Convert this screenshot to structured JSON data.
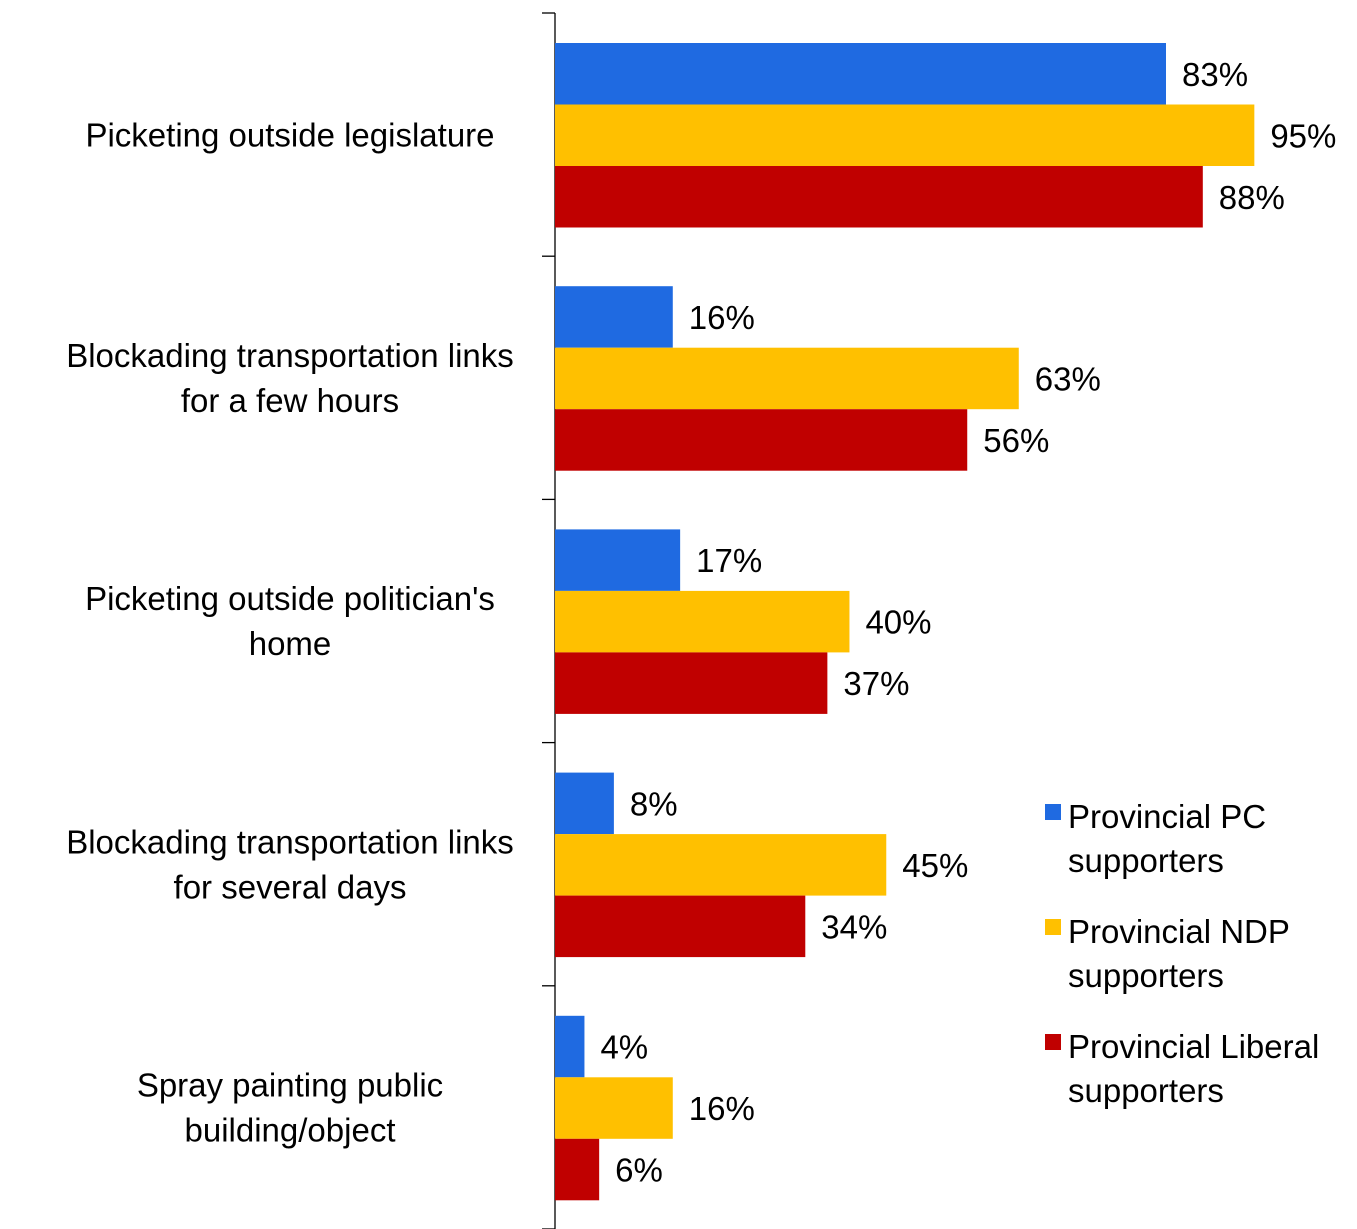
{
  "chart_data": {
    "type": "bar",
    "orientation": "horizontal",
    "categories": [
      [
        "Picketing outside legislature"
      ],
      [
        "Blockading transportation links",
        "for a few hours"
      ],
      [
        "Picketing outside politician's",
        "home"
      ],
      [
        "Blockading transportation links",
        "for several days"
      ],
      [
        "Spray painting public",
        "building/object"
      ]
    ],
    "series": [
      {
        "name": [
          "Provincial PC",
          "supporters"
        ],
        "color": "#1f6ae1",
        "values": [
          83,
          16,
          17,
          8,
          4
        ],
        "labels": [
          "83%",
          "16%",
          "17%",
          "8%",
          "4%"
        ]
      },
      {
        "name": [
          "Provincial NDP",
          "supporters"
        ],
        "color": "#ffc000",
        "values": [
          95,
          63,
          40,
          45,
          16
        ],
        "labels": [
          "95%",
          "63%",
          "40%",
          "45%",
          "16%"
        ]
      },
      {
        "name": [
          "Provincial Liberal",
          "supporters"
        ],
        "color": "#c00000",
        "values": [
          88,
          56,
          37,
          34,
          6
        ],
        "labels": [
          "88%",
          "56%",
          "37%",
          "34%",
          "6%"
        ]
      }
    ],
    "xlim": [
      0,
      100
    ],
    "value_unit": "%",
    "grid": false,
    "legend_position": "right",
    "title": "",
    "xlabel": "",
    "ylabel": ""
  }
}
